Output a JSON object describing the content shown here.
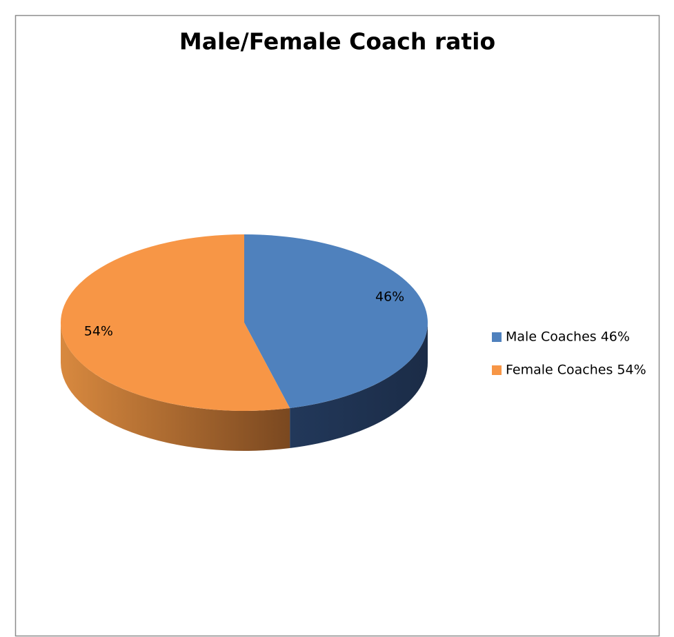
{
  "chart_data": {
    "type": "pie",
    "title": "Male/Female Coach ratio",
    "categories": [
      "Male Coaches 46%",
      "Female Coaches 54%"
    ],
    "values": [
      46,
      54
    ],
    "value_labels": [
      "46%",
      "54%"
    ],
    "colors": [
      "#4f81bd",
      "#f79646"
    ],
    "legend": "right"
  }
}
